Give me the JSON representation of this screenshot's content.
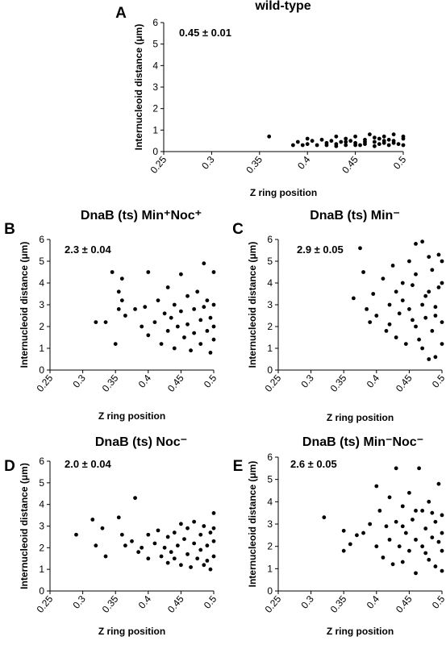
{
  "chart_data": [
    {
      "type": "scatter",
      "panel_label": "A",
      "title": "wild-type",
      "annotation": "0.45 ± 0.01",
      "x_label": "Z ring position",
      "y_label": "Internucleoid distance (μm)",
      "color": "#000000",
      "xlim": [
        0.25,
        0.5
      ],
      "xticks": [
        0.25,
        0.3,
        0.35,
        0.4,
        0.45,
        0.5
      ],
      "ylim": [
        0,
        6
      ],
      "yticks": [
        0,
        1,
        2,
        3,
        4,
        5,
        6
      ],
      "x": [
        0.36,
        0.385,
        0.39,
        0.395,
        0.4,
        0.4,
        0.405,
        0.41,
        0.415,
        0.42,
        0.42,
        0.425,
        0.43,
        0.43,
        0.435,
        0.44,
        0.44,
        0.445,
        0.45,
        0.45,
        0.455,
        0.46,
        0.46,
        0.465,
        0.47,
        0.47,
        0.475,
        0.48,
        0.48,
        0.485,
        0.49,
        0.49,
        0.495,
        0.5,
        0.5,
        0.46,
        0.47,
        0.48,
        0.49,
        0.5,
        0.44,
        0.45,
        0.43,
        0.475,
        0.485
      ],
      "values": [
        0.7,
        0.3,
        0.45,
        0.3,
        0.6,
        0.35,
        0.5,
        0.3,
        0.55,
        0.4,
        0.3,
        0.5,
        0.35,
        0.7,
        0.45,
        0.3,
        0.6,
        0.5,
        0.4,
        0.7,
        0.3,
        0.55,
        0.35,
        0.8,
        0.45,
        0.25,
        0.6,
        0.4,
        0.7,
        0.3,
        0.5,
        0.8,
        0.35,
        0.6,
        0.3,
        0.45,
        0.65,
        0.5,
        0.4,
        0.7,
        0.45,
        0.3,
        0.25,
        0.35,
        0.55
      ]
    },
    {
      "type": "scatter",
      "panel_label": "B",
      "title": "DnaB (ts) Min⁺Noc⁺",
      "annotation": "2.3 ± 0.04",
      "x_label": "Z ring position",
      "y_label": "Internucleoid distance (μm)",
      "color": "#000000",
      "xlim": [
        0.25,
        0.5
      ],
      "xticks": [
        0.25,
        0.3,
        0.35,
        0.4,
        0.45,
        0.5
      ],
      "ylim": [
        0,
        6
      ],
      "yticks": [
        0,
        1,
        2,
        3,
        4,
        5,
        6
      ],
      "x": [
        0.32,
        0.335,
        0.345,
        0.35,
        0.355,
        0.355,
        0.36,
        0.36,
        0.365,
        0.38,
        0.39,
        0.395,
        0.4,
        0.4,
        0.41,
        0.415,
        0.42,
        0.425,
        0.43,
        0.43,
        0.435,
        0.44,
        0.44,
        0.445,
        0.45,
        0.45,
        0.455,
        0.46,
        0.46,
        0.465,
        0.47,
        0.47,
        0.475,
        0.48,
        0.48,
        0.485,
        0.485,
        0.49,
        0.49,
        0.495,
        0.495,
        0.5,
        0.5,
        0.5,
        0.5
      ],
      "values": [
        2.2,
        2.2,
        4.5,
        1.2,
        3.6,
        2.8,
        3.2,
        4.2,
        2.5,
        2.8,
        2.0,
        2.9,
        4.5,
        1.6,
        2.2,
        3.2,
        1.2,
        2.6,
        3.8,
        1.8,
        2.4,
        3.0,
        1.0,
        2.0,
        4.4,
        2.7,
        1.5,
        3.4,
        2.1,
        0.9,
        2.8,
        1.7,
        3.6,
        2.3,
        1.2,
        4.9,
        2.9,
        1.8,
        3.2,
        2.4,
        0.8,
        4.5,
        2.0,
        1.4,
        3.0
      ]
    },
    {
      "type": "scatter",
      "panel_label": "C",
      "title": "DnaB (ts) Min⁻",
      "annotation": "2.9 ± 0.05",
      "x_label": "Z ring position",
      "y_label": "Internucleoid distance (μm)",
      "color": "#000000",
      "xlim": [
        0.25,
        0.5
      ],
      "xticks": [
        0.25,
        0.3,
        0.35,
        0.4,
        0.45,
        0.5
      ],
      "ylim": [
        0,
        6
      ],
      "yticks": [
        0,
        1,
        2,
        3,
        4,
        5,
        6
      ],
      "x": [
        0.365,
        0.375,
        0.38,
        0.385,
        0.39,
        0.395,
        0.4,
        0.41,
        0.415,
        0.42,
        0.42,
        0.425,
        0.43,
        0.43,
        0.435,
        0.44,
        0.44,
        0.445,
        0.45,
        0.45,
        0.455,
        0.46,
        0.46,
        0.465,
        0.47,
        0.47,
        0.475,
        0.48,
        0.48,
        0.485,
        0.485,
        0.49,
        0.49,
        0.495,
        0.495,
        0.5,
        0.5,
        0.5,
        0.5,
        0.46,
        0.475,
        0.49,
        0.48,
        0.455,
        0.47
      ],
      "values": [
        3.3,
        5.6,
        4.5,
        2.8,
        2.2,
        3.5,
        2.5,
        4.2,
        1.8,
        3.0,
        2.1,
        4.8,
        3.6,
        1.5,
        2.6,
        4.0,
        3.2,
        1.2,
        5.0,
        2.8,
        3.9,
        2.0,
        4.4,
        1.4,
        5.9,
        3.0,
        2.4,
        5.2,
        3.6,
        1.8,
        4.6,
        2.9,
        0.6,
        5.3,
        3.8,
        2.2,
        4.0,
        1.2,
        5.0,
        5.8,
        3.4,
        2.5,
        0.5,
        2.3,
        1.0
      ]
    },
    {
      "type": "scatter",
      "panel_label": "D",
      "title": "DnaB (ts) Noc⁻",
      "annotation": "2.0 ± 0.04",
      "x_label": "Z ring position",
      "y_label": "Internucleoid distance (μm)",
      "color": "#000000",
      "xlim": [
        0.25,
        0.5
      ],
      "xticks": [
        0.25,
        0.3,
        0.35,
        0.4,
        0.45,
        0.5
      ],
      "ylim": [
        0,
        6
      ],
      "yticks": [
        0,
        1,
        2,
        3,
        4,
        5,
        6
      ],
      "x": [
        0.29,
        0.315,
        0.32,
        0.33,
        0.335,
        0.355,
        0.36,
        0.365,
        0.375,
        0.38,
        0.385,
        0.39,
        0.4,
        0.4,
        0.41,
        0.415,
        0.42,
        0.425,
        0.43,
        0.43,
        0.435,
        0.44,
        0.44,
        0.445,
        0.45,
        0.45,
        0.455,
        0.46,
        0.46,
        0.465,
        0.47,
        0.47,
        0.475,
        0.48,
        0.48,
        0.485,
        0.485,
        0.49,
        0.49,
        0.495,
        0.495,
        0.5,
        0.5,
        0.5,
        0.5
      ],
      "values": [
        2.6,
        3.3,
        2.1,
        2.9,
        1.6,
        3.4,
        2.6,
        2.1,
        2.3,
        4.3,
        1.8,
        2.0,
        2.6,
        1.5,
        2.2,
        2.8,
        1.6,
        2.0,
        2.5,
        1.3,
        1.8,
        2.7,
        1.5,
        2.1,
        3.1,
        1.2,
        2.4,
        1.7,
        2.9,
        1.1,
        2.2,
        3.2,
        1.5,
        2.6,
        1.9,
        1.2,
        3.0,
        2.1,
        1.4,
        2.7,
        1.0,
        3.6,
        2.3,
        1.6,
        2.9
      ]
    },
    {
      "type": "scatter",
      "panel_label": "E",
      "title": "DnaB (ts) Min⁻Noc⁻",
      "annotation": "2.6 ± 0.05",
      "x_label": "Z ring position",
      "y_label": "Internucleoid distance (μm)",
      "color": "#000000",
      "xlim": [
        0.25,
        0.5
      ],
      "xticks": [
        0.25,
        0.3,
        0.35,
        0.4,
        0.45,
        0.5
      ],
      "ylim": [
        0,
        6
      ],
      "yticks": [
        0,
        1,
        2,
        3,
        4,
        5,
        6
      ],
      "x": [
        0.32,
        0.35,
        0.35,
        0.36,
        0.37,
        0.38,
        0.39,
        0.4,
        0.4,
        0.405,
        0.41,
        0.415,
        0.42,
        0.42,
        0.425,
        0.43,
        0.43,
        0.435,
        0.44,
        0.44,
        0.445,
        0.45,
        0.45,
        0.455,
        0.46,
        0.46,
        0.465,
        0.47,
        0.47,
        0.475,
        0.48,
        0.48,
        0.485,
        0.49,
        0.49,
        0.495,
        0.495,
        0.5,
        0.5,
        0.5,
        0.5,
        0.44,
        0.46,
        0.475,
        0.485
      ],
      "values": [
        3.3,
        1.8,
        2.7,
        2.1,
        2.5,
        2.6,
        3.0,
        4.7,
        2.0,
        3.6,
        1.5,
        2.9,
        4.2,
        2.3,
        1.2,
        5.5,
        3.1,
        2.0,
        3.8,
        1.3,
        2.6,
        4.4,
        1.8,
        3.2,
        2.3,
        0.8,
        5.5,
        3.6,
        2.0,
        2.8,
        1.4,
        4.0,
        2.4,
        3.1,
        1.1,
        4.8,
        2.2,
        0.9,
        3.4,
        1.8,
        2.6,
        2.9,
        3.6,
        1.7,
        3.5
      ]
    }
  ]
}
